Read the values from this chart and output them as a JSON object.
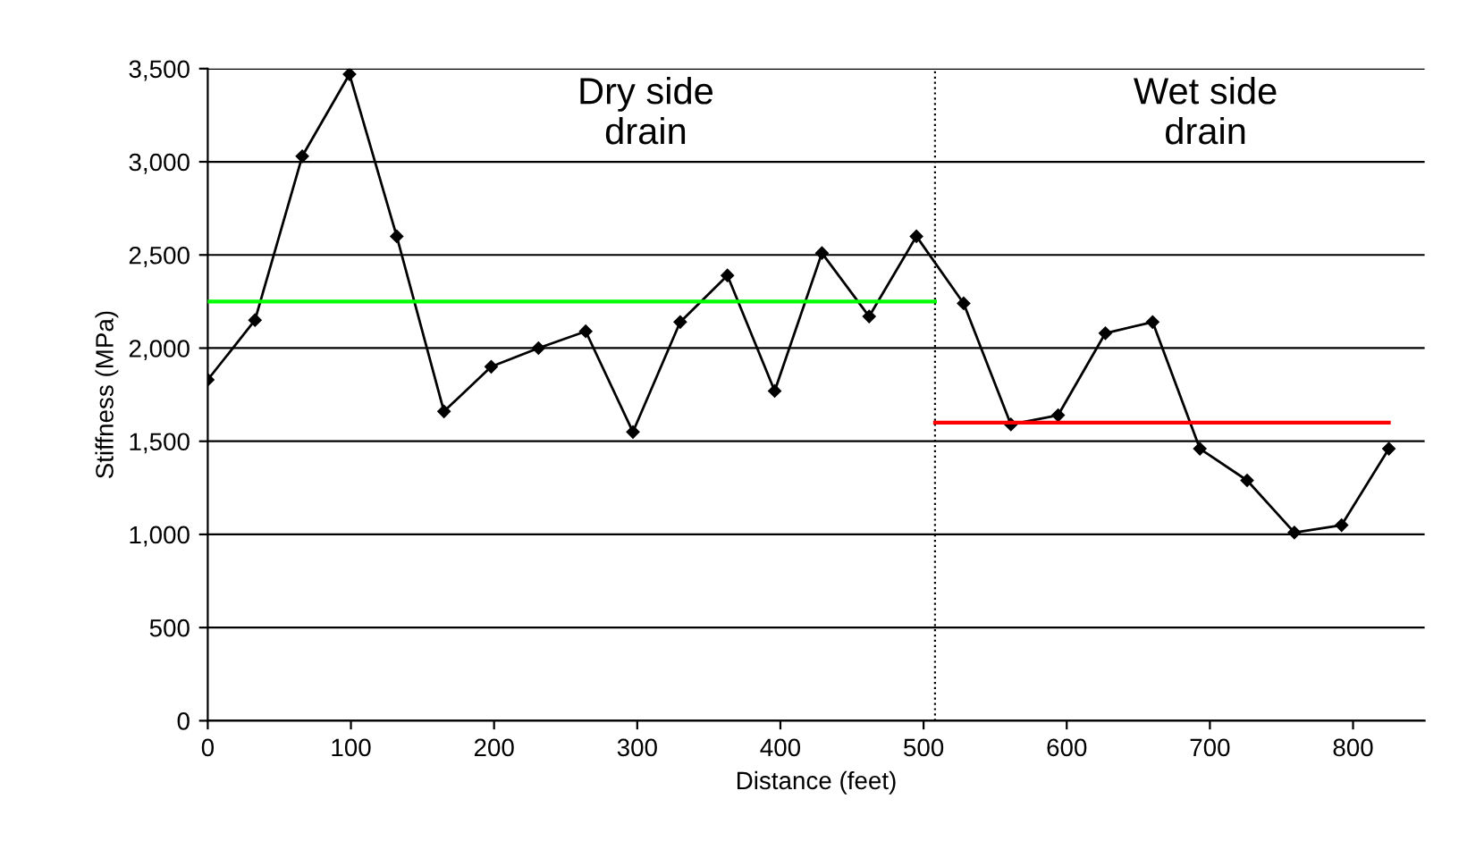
{
  "chart_data": {
    "type": "line",
    "xlabel": "Distance (feet)",
    "ylabel": "Stiffness (MPa)",
    "series": [
      {
        "color": "#000000",
        "marker": "diamond",
        "x": [
          0,
          33,
          66,
          99,
          132,
          165,
          198,
          231,
          264,
          297,
          330,
          363,
          396,
          429,
          462,
          495,
          528,
          561,
          594,
          627,
          660,
          693,
          726,
          759,
          792,
          825
        ],
        "values": [
          1830,
          2150,
          3030,
          3470,
          2600,
          1660,
          1900,
          2000,
          2090,
          1550,
          2140,
          2390,
          1770,
          2510,
          2170,
          2600,
          2240,
          1590,
          1640,
          2080,
          2140,
          1460,
          1290,
          1010,
          1050,
          1460
        ]
      },
      {
        "color": "#00ff00",
        "marker": "none",
        "x": [
          0,
          508
        ],
        "values": [
          2250,
          2250
        ]
      },
      {
        "color": "#ff0000",
        "marker": "none",
        "x": [
          508,
          825
        ],
        "values": [
          1600,
          1600
        ]
      }
    ],
    "ref_lines": [
      {
        "axis": "x",
        "value": 508,
        "color": "#000000",
        "line_style": "dotted"
      }
    ],
    "annotations": [
      "Dry side\ndrain",
      "Wet side\ndrain"
    ],
    "xlim": [
      0,
      850
    ],
    "xticks": [
      0,
      100,
      200,
      300,
      400,
      500,
      600,
      700,
      800
    ],
    "ylim": [
      0,
      3500
    ],
    "yticks": [
      0,
      {
        "value": 500,
        "label": "500"
      },
      {
        "value": 1000,
        "label": "1,000"
      },
      {
        "value": 1500,
        "label": "1,500"
      },
      {
        "value": 2000,
        "label": "2,000"
      },
      {
        "value": 2500,
        "label": "2,500"
      },
      {
        "value": 3000,
        "label": "3,000"
      },
      {
        "value": 3500,
        "label": "3,500"
      }
    ],
    "grid": "y",
    "legend": false
  }
}
